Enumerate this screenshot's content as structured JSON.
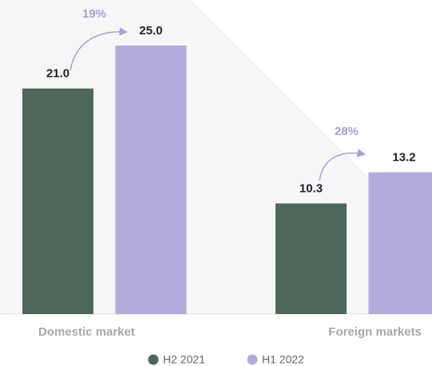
{
  "chart_data": {
    "type": "bar",
    "categories": [
      "Domestic market",
      "Foreign markets"
    ],
    "series": [
      {
        "name": "H2 2021",
        "color": "#4d685b",
        "values": [
          21.0,
          10.3
        ],
        "value_labels": [
          "21.0",
          "10.3"
        ]
      },
      {
        "name": "H1 2022",
        "color": "#b3acdb",
        "values": [
          25.0,
          13.2
        ],
        "value_labels": [
          "25.0",
          "13.2"
        ]
      }
    ],
    "annotations": [
      "19%",
      "28%"
    ],
    "legend": "bottom"
  }
}
